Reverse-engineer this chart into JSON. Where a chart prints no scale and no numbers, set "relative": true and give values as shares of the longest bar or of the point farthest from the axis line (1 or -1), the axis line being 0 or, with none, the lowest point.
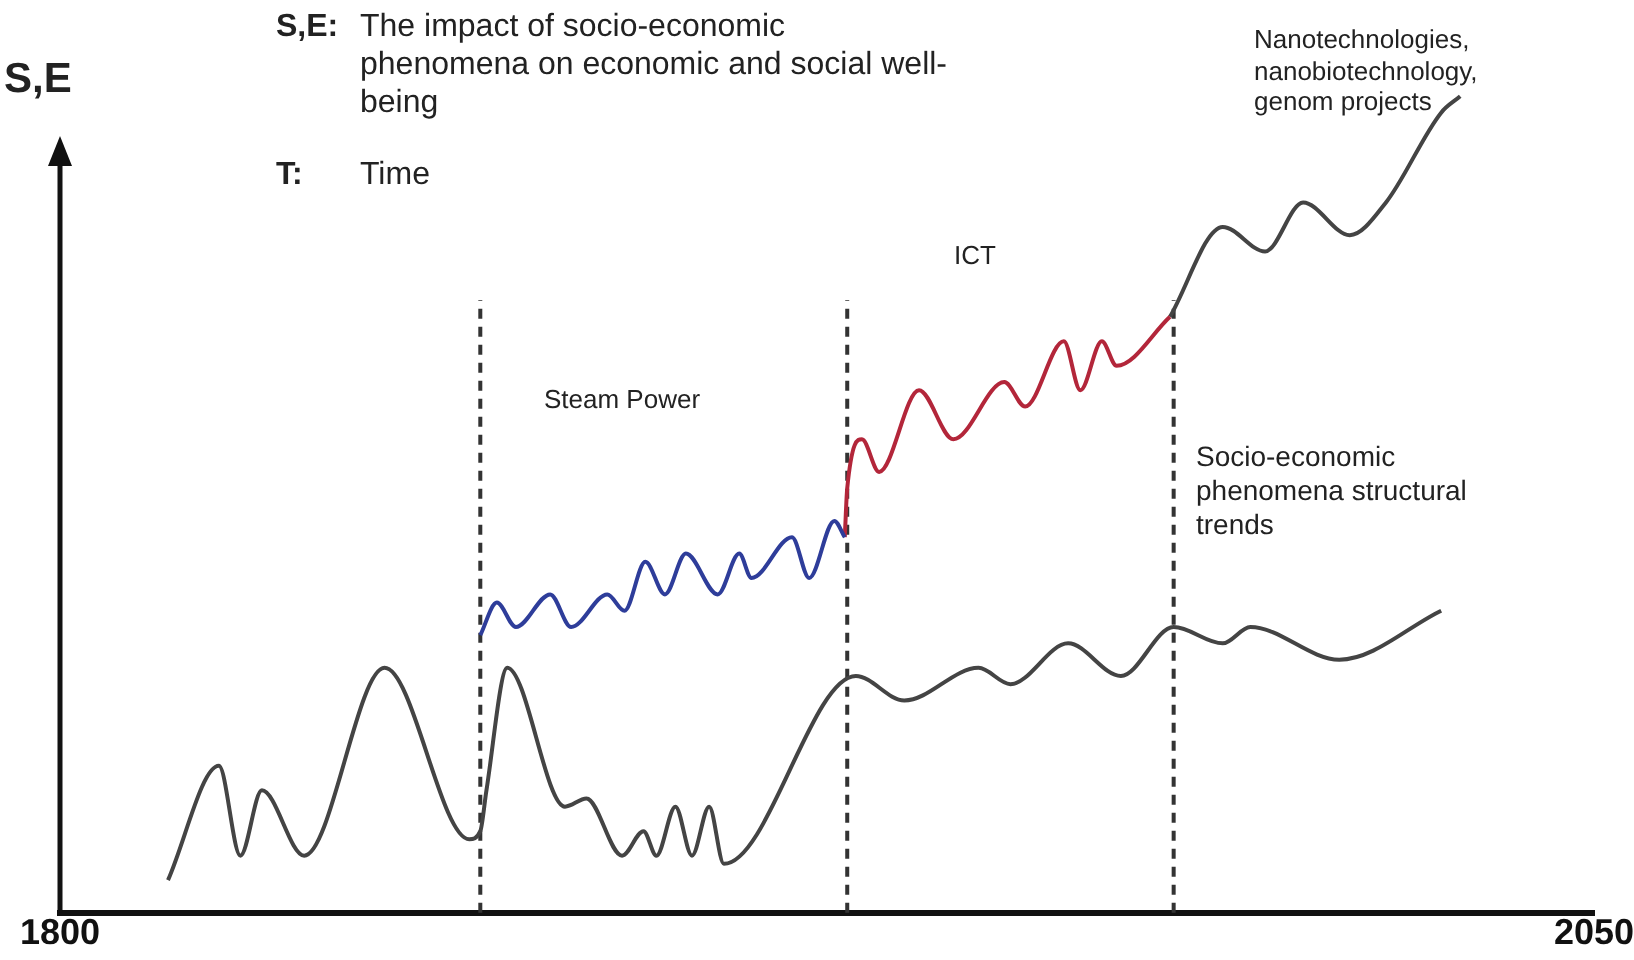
{
  "chart_data": {
    "type": "line",
    "relative": true,
    "ylabel": "S,E",
    "xlim": [
      1800,
      2050
    ],
    "xticks": [
      1800,
      2050
    ],
    "grid": false,
    "legend": false,
    "marker": "none",
    "annotations": [
      "S,E: The impact of socio-economic phenomena on economic and social well-being",
      "T: Time",
      "Steam Power",
      "ICT",
      "Nanotechnologies, nanobiotechnology, genom projects",
      "Socio-economic phenomena structural trends"
    ],
    "ref_lines": [
      {
        "axis": "x",
        "value": 1868.5,
        "label": null,
        "color": "#333333",
        "line_style": "dashed"
      },
      {
        "axis": "x",
        "value": 1928.3,
        "label": null,
        "color": "#333333",
        "line_style": "dashed"
      },
      {
        "axis": "x",
        "value": 1981.5,
        "label": null,
        "color": "#333333",
        "line_style": "dashed"
      }
    ],
    "series": [
      {
        "color": "#444444",
        "x": [
          1817.6,
          1825.9,
          1829.4,
          1832.9,
          1839.8,
          1852.9,
          1866.7,
          1868.5,
          1869.5,
          1872.9,
          1882.3,
          1885.8,
          1891.6,
          1895.1,
          1897.2,
          1900.3,
          1903.0,
          1905.8,
          1908.2,
          1929.7,
          1937.6,
          1949.7,
          1954.9,
          1964.3,
          1972.9,
          1981.5,
          1989.5,
          1994.0,
          2008.5,
          2025.1
        ],
        "values": [
          0.04,
          0.18,
          0.07,
          0.15,
          0.07,
          0.3,
          0.09,
          0.1,
          0.15,
          0.3,
          0.13,
          0.14,
          0.07,
          0.1,
          0.07,
          0.13,
          0.07,
          0.13,
          0.06,
          0.29,
          0.26,
          0.3,
          0.28,
          0.33,
          0.29,
          0.35,
          0.33,
          0.35,
          0.31,
          0.37
        ]
      },
      {
        "color": "#2e3d9a",
        "x": [
          1868.5,
          1871.2,
          1874.3,
          1879.9,
          1883.3,
          1889.2,
          1892.0,
          1895.4,
          1898.6,
          1902.0,
          1907.2,
          1910.7,
          1912.7,
          1919.3,
          1922.1,
          1926.2,
          1927.9
        ],
        "values": [
          0.34,
          0.38,
          0.35,
          0.39,
          0.35,
          0.39,
          0.37,
          0.43,
          0.39,
          0.44,
          0.39,
          0.44,
          0.41,
          0.46,
          0.41,
          0.48,
          0.46
        ]
      },
      {
        "color": "#b3263a",
        "x": [
          1927.9,
          1928.3,
          1930.7,
          1933.5,
          1940.0,
          1945.6,
          1953.9,
          1957.3,
          1963.6,
          1966.3,
          1969.8,
          1972.2,
          1980.9
        ],
        "values": [
          0.46,
          0.52,
          0.58,
          0.54,
          0.64,
          0.58,
          0.65,
          0.62,
          0.7,
          0.64,
          0.7,
          0.67,
          0.73
        ]
      },
      {
        "color": "#444444",
        "x": [
          1980.9,
          1989.5,
          1996.4,
          2002.6,
          2010.2,
          2016.1,
          2025.1,
          2028.2
        ],
        "values": [
          0.73,
          0.84,
          0.81,
          0.87,
          0.83,
          0.87,
          0.98,
          1.0
        ]
      }
    ]
  }
}
